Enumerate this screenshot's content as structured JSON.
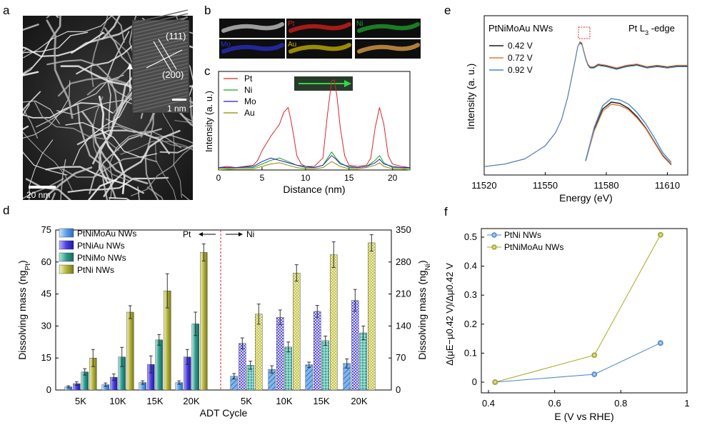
{
  "panels": {
    "a": {
      "letter": "a",
      "scalebar_main": "20 nm",
      "scalebar_inset": "1 nm",
      "plane_111": "(111)",
      "plane_200": "(200)"
    },
    "b": {
      "letter": "b",
      "maps": [
        {
          "label": "",
          "color": "#cccccc"
        },
        {
          "label": "Pt",
          "color": "#d8201e"
        },
        {
          "label": "Ni",
          "color": "#1fa32e"
        },
        {
          "label": "Mo",
          "color": "#2b2fc8"
        },
        {
          "label": "Au",
          "color": "#c8b400"
        },
        {
          "label": "",
          "color": "#e4a64a"
        }
      ]
    },
    "c": {
      "letter": "c"
    },
    "d": {
      "letter": "d"
    },
    "e": {
      "letter": "e"
    },
    "f": {
      "letter": "f"
    }
  },
  "colors": {
    "pt": "#d62728",
    "ni": "#1aa31a",
    "mo": "#1f1fc4",
    "au": "#8b8b00",
    "olive": "#a8a820",
    "blue": "#4a86c8",
    "orange": "#e07b39",
    "navy": "#1f3c6e"
  },
  "chart_data": [
    {
      "id": "c",
      "type": "line",
      "xlabel": "Distance (nm)",
      "ylabel": "Intensity (a. u.)",
      "xlim": [
        0,
        22
      ],
      "xticks": [
        0,
        5,
        10,
        15,
        20
      ],
      "series": [
        {
          "name": "Pt",
          "color": "#d62728",
          "x": [
            0,
            1,
            2,
            3,
            4,
            4.5,
            5,
            5.5,
            6,
            6.5,
            7,
            7.5,
            8,
            8.3,
            8.6,
            9,
            9.5,
            10,
            11,
            12,
            12.5,
            13,
            13.3,
            13.6,
            14,
            14.5,
            15,
            16,
            17,
            17.5,
            18,
            18.5,
            19,
            19.5,
            20,
            21,
            22
          ],
          "y": [
            0.02,
            0.03,
            0.02,
            0.03,
            0.04,
            0.08,
            0.16,
            0.22,
            0.28,
            0.33,
            0.38,
            0.48,
            0.52,
            0.42,
            0.3,
            0.12,
            0.05,
            0.03,
            0.03,
            0.1,
            0.45,
            0.74,
            0.75,
            0.62,
            0.35,
            0.12,
            0.04,
            0.03,
            0.04,
            0.1,
            0.35,
            0.52,
            0.38,
            0.12,
            0.05,
            0.03,
            0.02
          ]
        },
        {
          "name": "Ni",
          "color": "#1aa31a",
          "x": [
            0,
            2,
            4,
            5,
            6,
            7,
            8,
            9,
            10,
            11,
            12,
            13,
            13.5,
            14,
            15,
            16,
            17,
            18,
            18.5,
            19,
            20,
            21,
            22
          ],
          "y": [
            0.01,
            0.02,
            0.02,
            0.05,
            0.08,
            0.1,
            0.07,
            0.04,
            0.02,
            0.02,
            0.04,
            0.15,
            0.1,
            0.06,
            0.02,
            0.02,
            0.03,
            0.08,
            0.12,
            0.06,
            0.02,
            0.02,
            0.01
          ]
        },
        {
          "name": "Mo",
          "color": "#1f1fc4",
          "x": [
            0,
            2,
            4,
            5,
            6,
            7,
            8,
            9,
            10,
            11,
            12,
            13,
            13.5,
            14,
            15,
            16,
            17,
            18,
            18.5,
            19,
            20,
            21,
            22
          ],
          "y": [
            0.02,
            0.02,
            0.03,
            0.07,
            0.1,
            0.08,
            0.06,
            0.04,
            0.03,
            0.02,
            0.04,
            0.12,
            0.09,
            0.05,
            0.03,
            0.02,
            0.03,
            0.06,
            0.09,
            0.05,
            0.03,
            0.02,
            0.02
          ]
        },
        {
          "name": "Au",
          "color": "#8b8b00",
          "x": [
            0,
            2,
            4,
            5,
            6,
            7,
            8,
            9,
            10,
            11,
            12,
            13,
            13.5,
            14,
            15,
            16,
            17,
            18,
            18.5,
            19,
            20,
            21,
            22
          ],
          "y": [
            0.0,
            0.01,
            0.01,
            0.03,
            0.05,
            0.06,
            0.04,
            0.02,
            0.01,
            0.01,
            0.02,
            0.07,
            0.05,
            0.03,
            0.01,
            0.01,
            0.02,
            0.04,
            0.06,
            0.03,
            0.01,
            0.01,
            0.0
          ]
        }
      ]
    },
    {
      "id": "d",
      "type": "bar",
      "xlabel": "ADT Cycle",
      "ylabel_left": "Dissolving mass (ng",
      "ylabel_left_sub": "Pt",
      "ylabel_right": "Dissolving mass (ng",
      "ylabel_right_sub": "Ni",
      "ylim_left": [
        0,
        75
      ],
      "yticks_left": [
        0,
        15,
        30,
        45,
        60,
        75
      ],
      "ylim_right": [
        0,
        350
      ],
      "yticks_right": [
        0,
        70,
        140,
        210,
        280,
        350
      ],
      "categories": [
        "5K",
        "10K",
        "15K",
        "20K"
      ],
      "arrow_left": "Pt",
      "arrow_right": "Ni",
      "pt_series": [
        {
          "name": "PtNiMoAu NWs",
          "color": "#5aa0e8",
          "values": [
            1.5,
            2.5,
            3.5,
            3.5
          ],
          "err": [
            0.5,
            0.8,
            0.8,
            0.8
          ]
        },
        {
          "name": "PtNiAu NWs",
          "color": "#4a3fe0",
          "values": [
            3,
            6,
            12,
            15.5
          ],
          "err": [
            0.8,
            1.5,
            4,
            3.5
          ]
        },
        {
          "name": "PtNiMo NWs",
          "color": "#2f9a8c",
          "values": [
            8.5,
            15.5,
            23.5,
            31
          ],
          "err": [
            1.5,
            4.5,
            2.5,
            5.5
          ]
        },
        {
          "name": "PtNi NWs",
          "color": "#b4b43a",
          "values": [
            15,
            36.5,
            46.5,
            64.5
          ],
          "err": [
            4,
            3,
            8,
            4
          ]
        }
      ],
      "ni_series": [
        {
          "name": "PtNiMoAu NWs",
          "values": [
            30,
            45,
            55,
            58
          ],
          "err": [
            6,
            8,
            6,
            10
          ]
        },
        {
          "name": "PtNiAu NWs",
          "values": [
            102,
            159,
            172,
            196
          ],
          "err": [
            12,
            16,
            13,
            24
          ]
        },
        {
          "name": "PtNiMo NWs",
          "values": [
            54,
            94,
            108,
            125
          ],
          "err": [
            9,
            11,
            10,
            15
          ]
        },
        {
          "name": "PtNi NWs",
          "values": [
            166,
            256,
            296,
            322
          ],
          "err": [
            22,
            18,
            28,
            18
          ]
        }
      ]
    },
    {
      "id": "e",
      "type": "line",
      "title": "PtNiMoAu NWs",
      "edge_label": "Pt L",
      "edge_sub": "3",
      "edge_suffix": " -edge",
      "xlabel": "Energy (eV)",
      "ylabel": "Intensity (a. u.)",
      "xlim": [
        11520,
        11620
      ],
      "xticks": [
        11520,
        11550,
        11580,
        11610
      ],
      "series": [
        {
          "name": "0.42 V",
          "color": "#1a1a1a"
        },
        {
          "name": "0.72 V",
          "color": "#e07b39"
        },
        {
          "name": "0.92 V",
          "color": "#4a86c8"
        }
      ],
      "x": [
        11520,
        11530,
        11540,
        11550,
        11555,
        11558,
        11561,
        11563,
        11565,
        11566,
        11567,
        11568,
        11569,
        11570,
        11571,
        11572,
        11574,
        11576,
        11580,
        11585,
        11590,
        11595,
        11600,
        11605,
        11610,
        11615,
        11620
      ],
      "y": [
        0.02,
        0.04,
        0.08,
        0.18,
        0.28,
        0.38,
        0.55,
        0.7,
        0.86,
        0.94,
        0.97,
        0.96,
        0.9,
        0.84,
        0.8,
        0.78,
        0.78,
        0.8,
        0.79,
        0.77,
        0.79,
        0.8,
        0.78,
        0.79,
        0.78,
        0.79,
        0.79
      ],
      "inset_x": [
        0,
        0.1,
        0.2,
        0.3,
        0.4,
        0.5,
        0.6,
        0.7,
        0.8,
        0.9,
        1.0
      ],
      "inset_series": [
        [
          0.1,
          0.55,
          0.85,
          0.95,
          0.93,
          0.86,
          0.74,
          0.58,
          0.38,
          0.18,
          0.05
        ],
        [
          0.1,
          0.53,
          0.82,
          0.92,
          0.9,
          0.84,
          0.72,
          0.57,
          0.37,
          0.17,
          0.04
        ],
        [
          0.1,
          0.58,
          0.9,
          1.0,
          0.98,
          0.92,
          0.8,
          0.64,
          0.44,
          0.22,
          0.08
        ]
      ]
    },
    {
      "id": "f",
      "type": "scatter",
      "xlabel": "E (V vs RHE)",
      "ylabel": "Δ(μE−μ0.42 V)/Δμ0.42 V",
      "xlim": [
        0.4,
        1.0
      ],
      "xticks": [
        0.4,
        0.6,
        0.8,
        1.0
      ],
      "ylim": [
        0,
        0.52
      ],
      "yticks": [
        0.0,
        0.1,
        0.2,
        0.3,
        0.4,
        0.5
      ],
      "series": [
        {
          "name": "PtNi NWs",
          "color": "#4a86c8",
          "x": [
            0.42,
            0.72,
            0.92
          ],
          "y": [
            0.0,
            0.027,
            0.135
          ]
        },
        {
          "name": "PtNiMoAu NWs",
          "color": "#a8a820",
          "x": [
            0.42,
            0.72,
            0.92
          ],
          "y": [
            0.0,
            0.093,
            0.508
          ]
        }
      ]
    }
  ]
}
